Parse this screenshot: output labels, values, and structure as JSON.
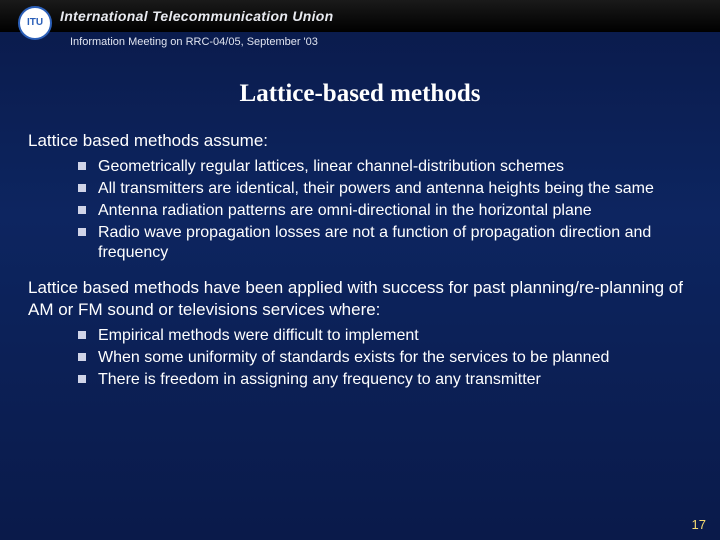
{
  "header": {
    "logo_text": "ITU",
    "banner_title": "International Telecommunication Union",
    "subline": "Information Meeting on RRC-04/05, September '03"
  },
  "slide": {
    "title": "Lattice-based methods",
    "section1": {
      "para": "Lattice based methods assume:",
      "bullets": [
        "Geometrically regular lattices, linear channel-distribution schemes",
        "All transmitters are identical, their powers and antenna heights being the same",
        "Antenna radiation patterns are omni-directional in the horizontal plane",
        "Radio wave propagation losses are not a function of propagation direction and frequency"
      ]
    },
    "section2": {
      "para": "Lattice based methods have been applied with success for past planning/re-planning of AM or FM sound or televisions services where:",
      "bullets": [
        "Empirical methods were difficult to implement",
        "When some uniformity of standards exists for the services to be planned",
        "There is freedom in assigning any frequency to any transmitter"
      ]
    },
    "page_number": "17"
  },
  "style": {
    "background_gradient": [
      "#0a1a4a",
      "#0d2560",
      "#0a1a4a"
    ],
    "banner_bg": "#000000",
    "banner_text_color": "#e8eaf0",
    "logo_border": "#2b5fb8",
    "logo_bg": "#ffffff",
    "title_color": "#ffffff",
    "body_text_color": "#ffffff",
    "bullet_marker_color": "#d0d4e8",
    "page_number_color": "#f4d971",
    "title_font": "Times New Roman, serif",
    "body_font": "Arial, sans-serif",
    "title_fontsize_pt": 19,
    "para_fontsize_pt": 13,
    "bullet_fontsize_pt": 12
  }
}
